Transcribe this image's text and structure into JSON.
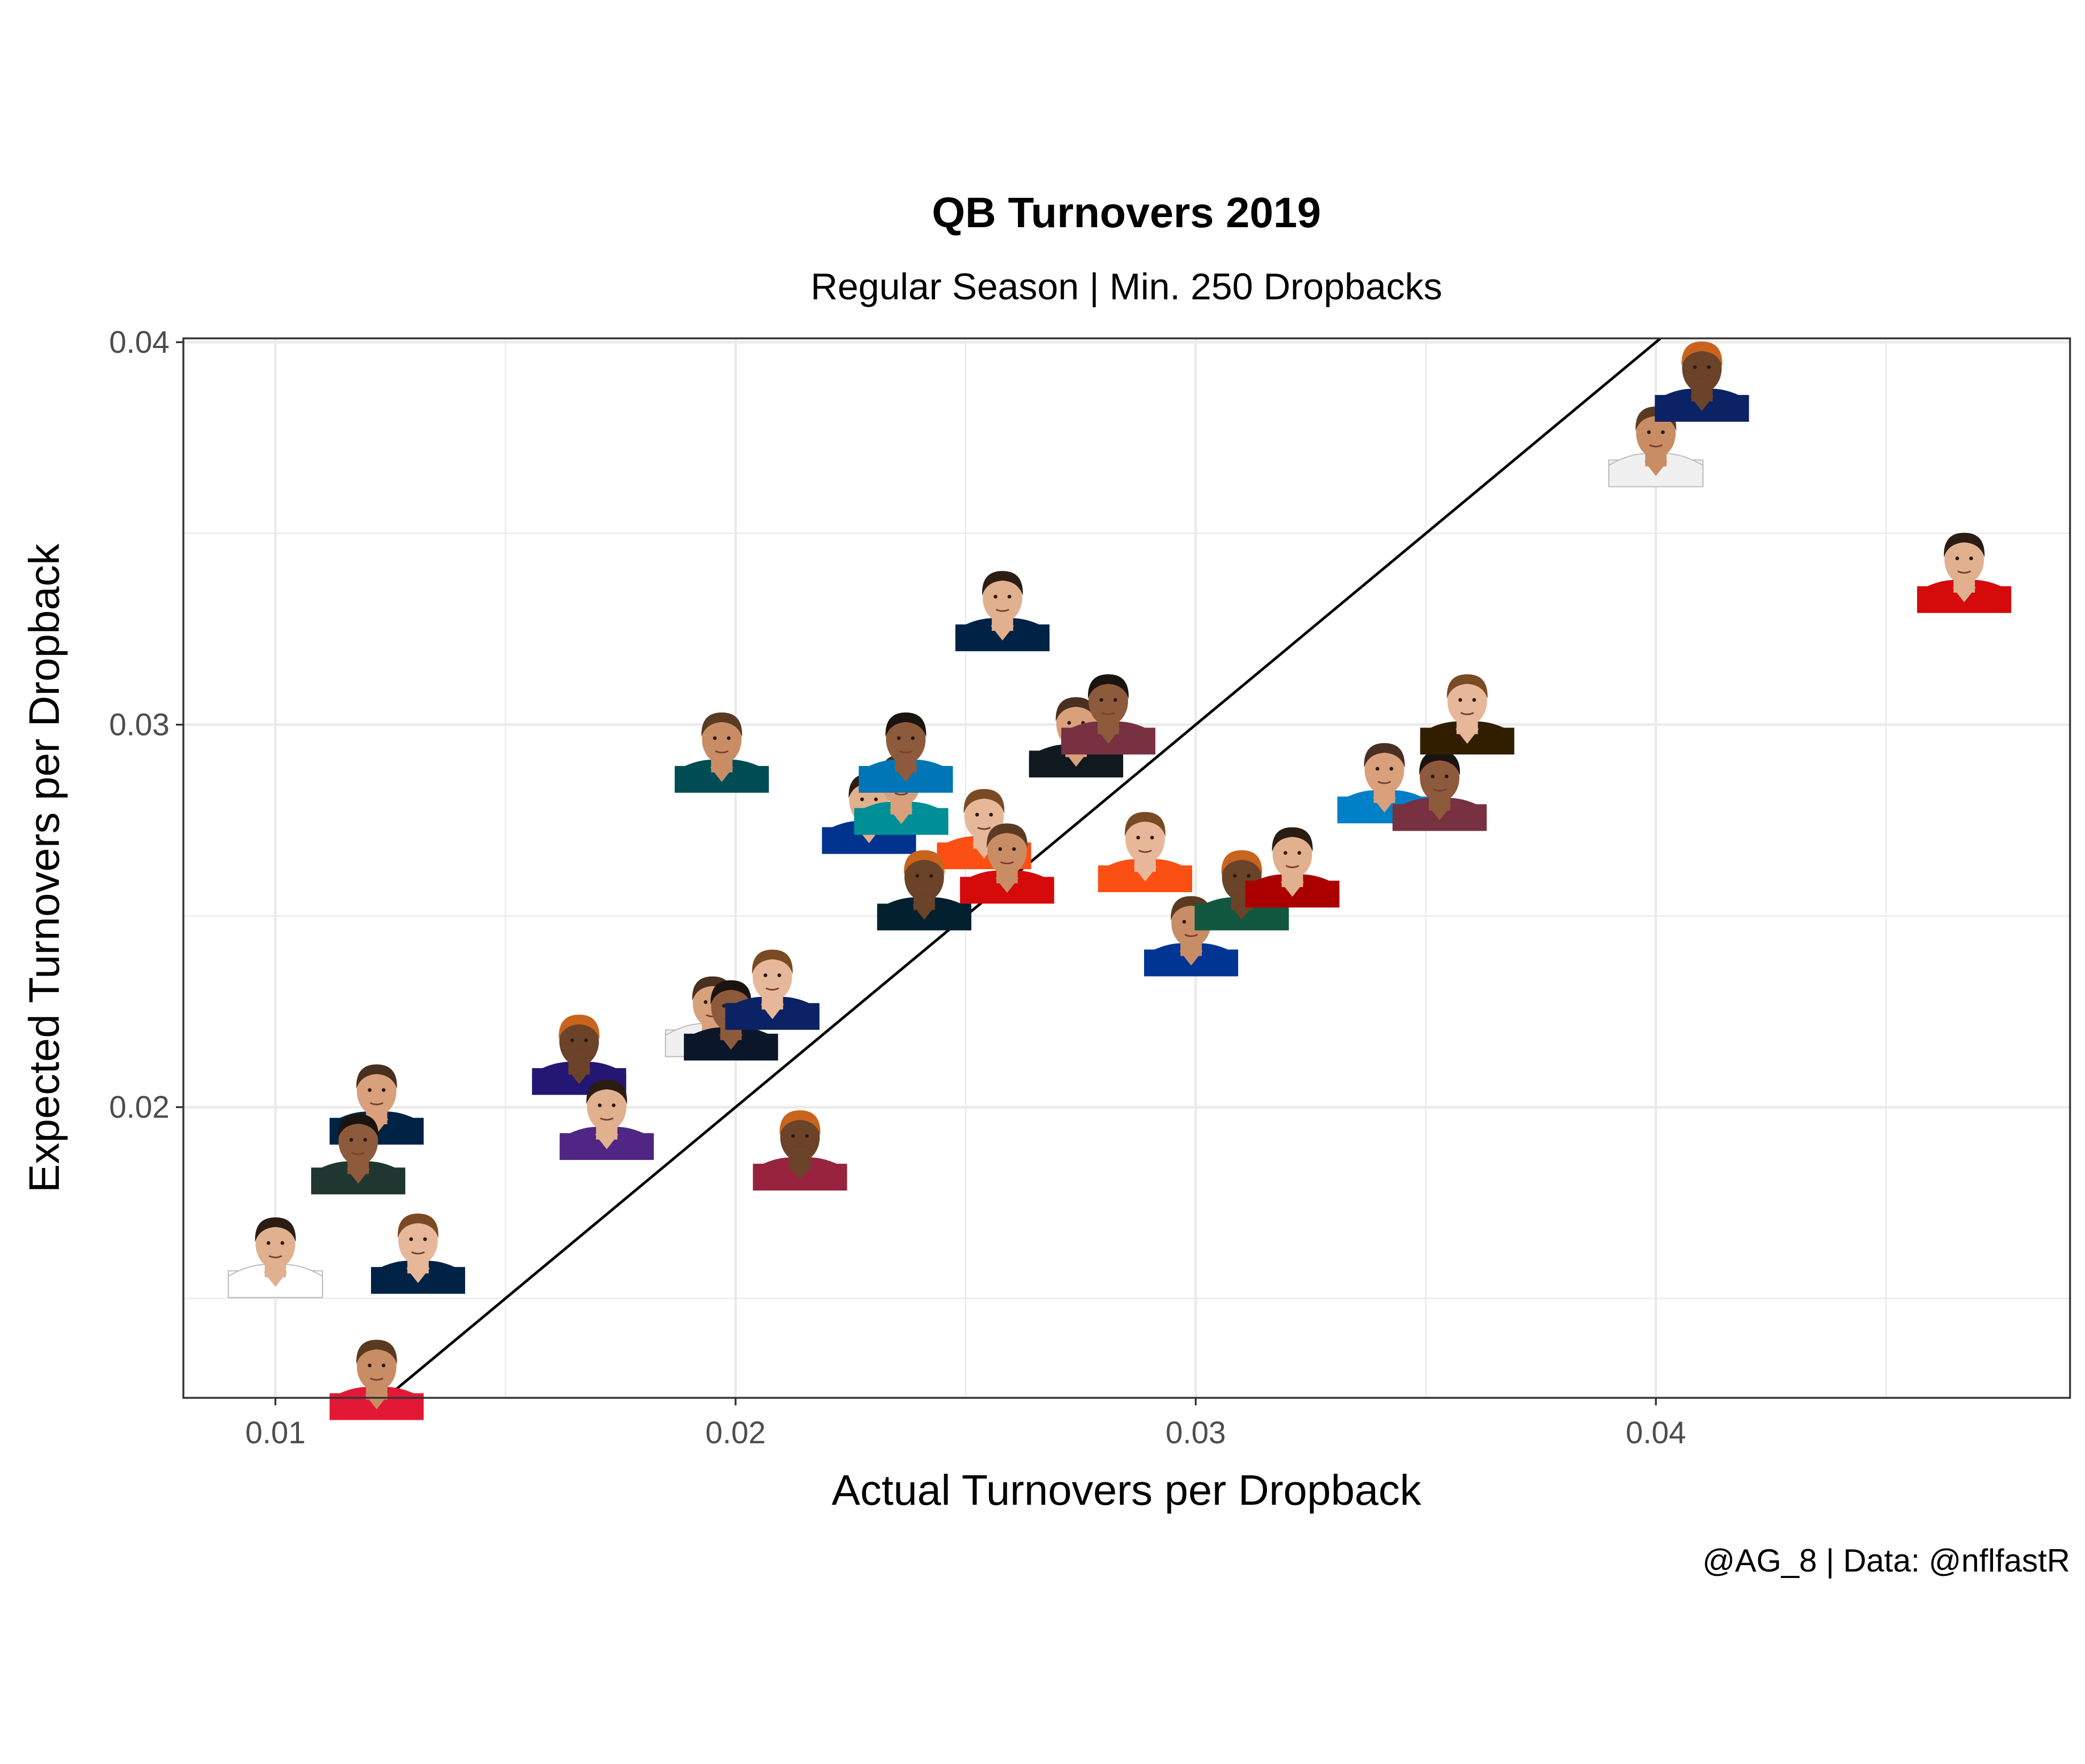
{
  "chart_data": {
    "type": "scatter",
    "title": "QB Turnovers 2019",
    "subtitle": "Regular Season | Min. 250 Dropbacks",
    "xlabel": "Actual Turnovers per Dropback",
    "ylabel": "Expected Turnovers per Dropback",
    "caption": "@AG_8 | Data: @nflfastR",
    "xlim": [
      0.008,
      0.049
    ],
    "ylim": [
      0.0124,
      0.0401
    ],
    "x_ticks": [
      0.01,
      0.02,
      0.03,
      0.04
    ],
    "x_tick_labels": [
      "0.01",
      "0.02",
      "0.03",
      "0.04"
    ],
    "y_ticks": [
      0.02,
      0.03,
      0.04
    ],
    "y_tick_labels": [
      "0.02",
      "0.03",
      "0.04"
    ],
    "grid": true,
    "reference_line": "y = x",
    "marker": "player headshot",
    "points": [
      {
        "x": 0.01,
        "y": 0.016,
        "jersey": "#ffffff"
      },
      {
        "x": 0.0122,
        "y": 0.02,
        "jersey": "#002244"
      },
      {
        "x": 0.0118,
        "y": 0.0187,
        "jersey": "#203731"
      },
      {
        "x": 0.0131,
        "y": 0.0161,
        "jersey": "#002244"
      },
      {
        "x": 0.0122,
        "y": 0.0128,
        "jersey": "#e31837"
      },
      {
        "x": 0.0166,
        "y": 0.0213,
        "jersey": "#241773"
      },
      {
        "x": 0.0172,
        "y": 0.0196,
        "jersey": "#4f2683"
      },
      {
        "x": 0.0195,
        "y": 0.0223,
        "jersey": "#f0f0f0"
      },
      {
        "x": 0.0199,
        "y": 0.0222,
        "jersey": "#0b162a"
      },
      {
        "x": 0.0208,
        "y": 0.023,
        "jersey": "#0b2265"
      },
      {
        "x": 0.0197,
        "y": 0.0292,
        "jersey": "#004c54"
      },
      {
        "x": 0.0214,
        "y": 0.0188,
        "jersey": "#97233f"
      },
      {
        "x": 0.0229,
        "y": 0.0276,
        "jersey": "#00338d"
      },
      {
        "x": 0.0236,
        "y": 0.0281,
        "jersey": "#008e97"
      },
      {
        "x": 0.0237,
        "y": 0.0292,
        "jersey": "#0076b6"
      },
      {
        "x": 0.0254,
        "y": 0.0272,
        "jersey": "#fb4f14"
      },
      {
        "x": 0.0259,
        "y": 0.0263,
        "jersey": "#d50a0a"
      },
      {
        "x": 0.0241,
        "y": 0.0256,
        "jersey": "#03202f"
      },
      {
        "x": 0.0258,
        "y": 0.0329,
        "jersey": "#002244"
      },
      {
        "x": 0.0274,
        "y": 0.0296,
        "jersey": "#101820"
      },
      {
        "x": 0.0281,
        "y": 0.0302,
        "jersey": "#773141"
      },
      {
        "x": 0.0289,
        "y": 0.0266,
        "jersey": "#fb4f14"
      },
      {
        "x": 0.0299,
        "y": 0.0244,
        "jersey": "#003594"
      },
      {
        "x": 0.031,
        "y": 0.0256,
        "jersey": "#125740"
      },
      {
        "x": 0.0321,
        "y": 0.0262,
        "jersey": "#aa0000"
      },
      {
        "x": 0.0341,
        "y": 0.0284,
        "jersey": "#0080c6"
      },
      {
        "x": 0.0353,
        "y": 0.0282,
        "jersey": "#773141"
      },
      {
        "x": 0.0359,
        "y": 0.0302,
        "jersey": "#311d00"
      },
      {
        "x": 0.04,
        "y": 0.0372,
        "jersey": "#f0f0f0"
      },
      {
        "x": 0.041,
        "y": 0.0389,
        "jersey": "#0b2265"
      },
      {
        "x": 0.0467,
        "y": 0.0339,
        "jersey": "#d50a0a"
      }
    ]
  }
}
